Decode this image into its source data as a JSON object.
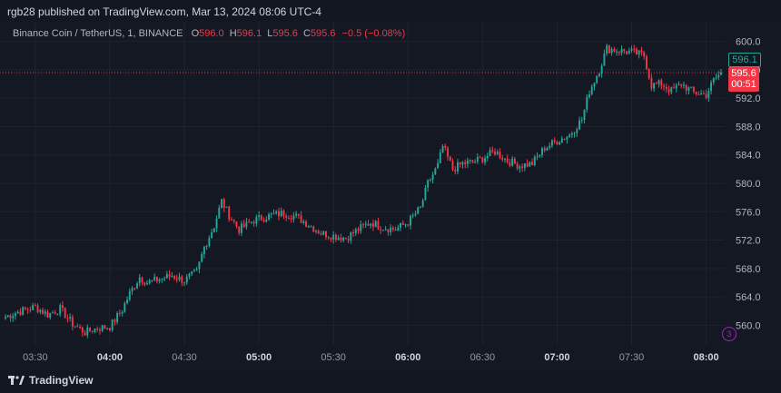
{
  "header": {
    "publisher_line": "rgb28 published on TradingView.com, Mar 13, 2024 08:06 UTC-4"
  },
  "legend": {
    "symbol": "Binance Coin / TetherUS, 1, BINANCE",
    "o_label": "O",
    "o_value": "596.0",
    "h_label": "H",
    "h_value": "596.1",
    "l_label": "L",
    "l_value": "595.6",
    "c_label": "C",
    "c_value": "595.6",
    "change": "−0.5 (−0.08%)"
  },
  "price_badges": {
    "high": "596.1",
    "last": "595.6",
    "countdown": "00:51"
  },
  "footer": {
    "brand": "TradingView"
  },
  "colors": {
    "up": "#26a69a",
    "down": "#f23645",
    "background": "#131722",
    "grid": "#1f2330",
    "price_line": "#f23645"
  },
  "chart_data": {
    "type": "candlestick",
    "symbol": "Binance Coin / TetherUS",
    "interval_minutes": 1,
    "y_ticks": [
      600.0,
      596.0,
      592.0,
      588.0,
      584.0,
      580.0,
      576.0,
      572.0,
      568.0,
      564.0,
      560.0
    ],
    "y_tick_labels": [
      "600.0",
      "596.0",
      "592.0",
      "588.0",
      "584.0",
      "580.0",
      "576.0",
      "572.0",
      "568.0",
      "564.0",
      "560.0"
    ],
    "ylim": [
      558.0,
      602.0
    ],
    "x_ticks": [
      "03:30",
      "04:00",
      "04:30",
      "05:00",
      "05:30",
      "06:00",
      "06:30",
      "07:00",
      "07:30",
      "08:00"
    ],
    "x_tick_bold": [
      false,
      true,
      false,
      true,
      false,
      true,
      false,
      true,
      false,
      true
    ],
    "start_time": "03:18",
    "end_time": "08:06",
    "last_price": 595.6,
    "close_path": [
      [
        "03:18",
        561.2
      ],
      [
        "03:24",
        562.0
      ],
      [
        "03:30",
        562.6
      ],
      [
        "03:35",
        561.5
      ],
      [
        "03:40",
        562.3
      ],
      [
        "03:45",
        560.2
      ],
      [
        "03:50",
        559.0
      ],
      [
        "03:55",
        559.6
      ],
      [
        "04:00",
        559.8
      ],
      [
        "04:05",
        562.2
      ],
      [
        "04:08",
        564.5
      ],
      [
        "04:12",
        566.8
      ],
      [
        "04:15",
        566.0
      ],
      [
        "04:20",
        566.5
      ],
      [
        "04:25",
        567.0
      ],
      [
        "04:30",
        566.3
      ],
      [
        "04:35",
        567.5
      ],
      [
        "04:38",
        571.0
      ],
      [
        "04:42",
        574.0
      ],
      [
        "04:45",
        577.5
      ],
      [
        "04:48",
        575.5
      ],
      [
        "04:52",
        573.5
      ],
      [
        "04:58",
        574.8
      ],
      [
        "05:05",
        575.5
      ],
      [
        "05:10",
        575.8
      ],
      [
        "05:15",
        575.3
      ],
      [
        "05:20",
        574.2
      ],
      [
        "05:25",
        573.0
      ],
      [
        "05:30",
        572.6
      ],
      [
        "05:35",
        572.3
      ],
      [
        "05:40",
        573.5
      ],
      [
        "05:45",
        574.5
      ],
      [
        "05:50",
        573.8
      ],
      [
        "05:55",
        573.5
      ],
      [
        "06:00",
        574.5
      ],
      [
        "06:05",
        576.5
      ],
      [
        "06:08",
        580.0
      ],
      [
        "06:12",
        582.5
      ],
      [
        "06:14",
        585.2
      ],
      [
        "06:18",
        582.0
      ],
      [
        "06:22",
        582.8
      ],
      [
        "06:26",
        583.0
      ],
      [
        "06:30",
        583.5
      ],
      [
        "06:35",
        584.5
      ],
      [
        "06:40",
        583.2
      ],
      [
        "06:45",
        582.5
      ],
      [
        "06:50",
        582.8
      ],
      [
        "06:55",
        585.0
      ],
      [
        "07:00",
        586.0
      ],
      [
        "07:05",
        586.8
      ],
      [
        "07:10",
        589.0
      ],
      [
        "07:13",
        593.0
      ],
      [
        "07:17",
        596.0
      ],
      [
        "07:20",
        599.0
      ],
      [
        "07:25",
        598.7
      ],
      [
        "07:30",
        598.5
      ],
      [
        "07:35",
        598.0
      ],
      [
        "07:38",
        593.8
      ],
      [
        "07:42",
        594.0
      ],
      [
        "07:46",
        593.0
      ],
      [
        "07:50",
        594.0
      ],
      [
        "07:55",
        592.8
      ],
      [
        "08:00",
        592.5
      ],
      [
        "08:03",
        594.5
      ],
      [
        "08:06",
        595.6
      ]
    ]
  }
}
